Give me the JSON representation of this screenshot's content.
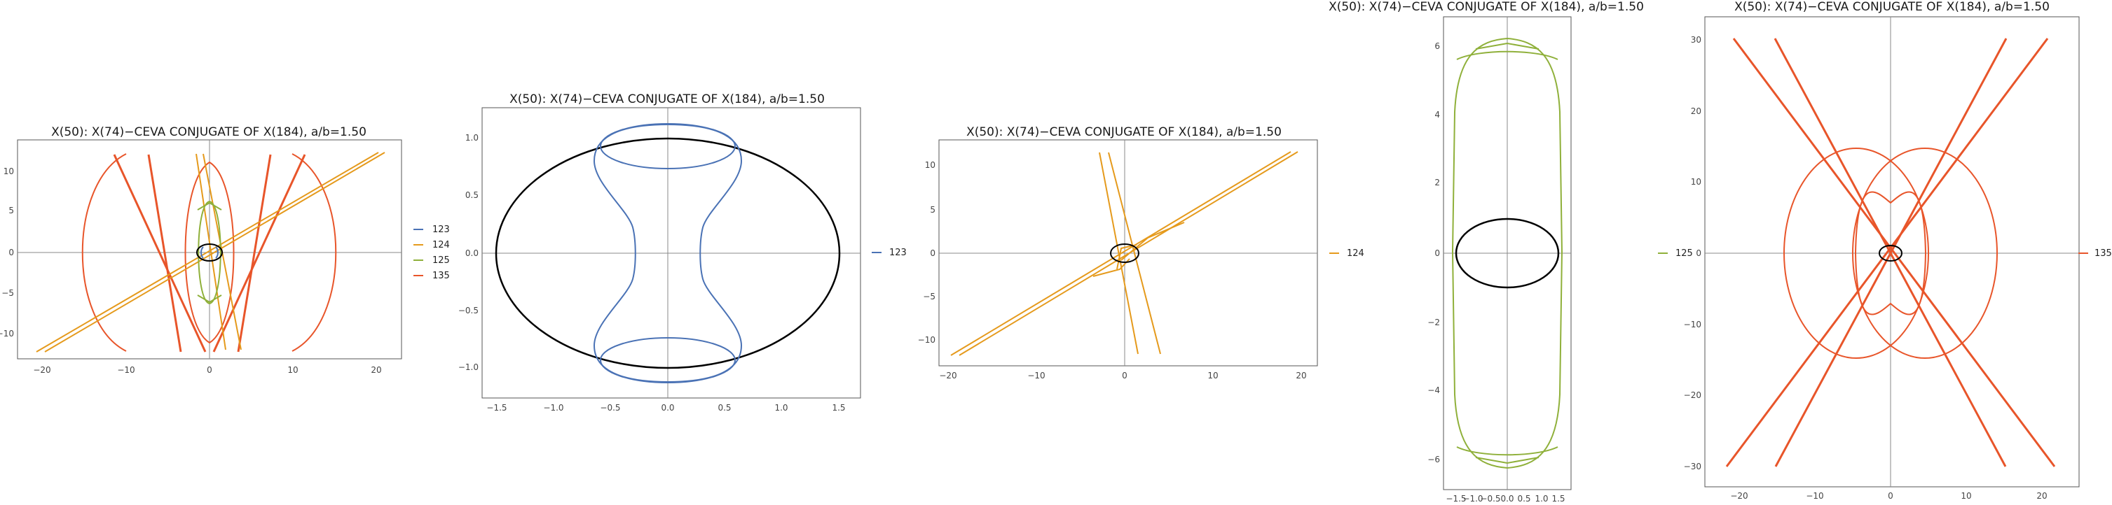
{
  "chart_data": [
    {
      "type": "line",
      "title": "X(50): X(74)−CEVA CONJUGATE OF X(184), a/b=1.50",
      "xticks": [
        "−20",
        "−10",
        "0",
        "10",
        "20"
      ],
      "yticks": [
        "10",
        "5",
        "0",
        "−5",
        "−10"
      ],
      "xlim": [
        -22,
        23
      ],
      "ylim": [
        -13.5,
        13.5
      ],
      "series": [
        {
          "name": "123",
          "color": "#4a72b5"
        },
        {
          "name": "124",
          "color": "#e59a1c"
        },
        {
          "name": "125",
          "color": "#8fb03a"
        },
        {
          "name": "135",
          "color": "#e8552a"
        }
      ]
    },
    {
      "type": "line",
      "title": "X(50): X(74)−CEVA CONJUGATE OF X(184), a/b=1.50",
      "xticks": [
        "−1.5",
        "−1.0",
        "−0.5",
        "0.0",
        "0.5",
        "1.0",
        "1.5"
      ],
      "yticks": [
        "1.0",
        "0.5",
        "0.0",
        "−0.5",
        "−1.0"
      ],
      "xlim": [
        -1.65,
        1.68
      ],
      "ylim": [
        -1.3,
        1.25
      ],
      "series": [
        {
          "name": "123",
          "color": "#4a72b5"
        }
      ]
    },
    {
      "type": "line",
      "title": "X(50): X(74)−CEVA CONJUGATE OF X(184), a/b=1.50",
      "xticks": [
        "−20",
        "−10",
        "0",
        "10",
        "20"
      ],
      "yticks": [
        "10",
        "5",
        "0",
        "−5",
        "−10"
      ],
      "xlim": [
        -21,
        22
      ],
      "ylim": [
        -13,
        13
      ],
      "series": [
        {
          "name": "124",
          "color": "#e59a1c"
        }
      ]
    },
    {
      "type": "line",
      "title": "X(50): X(74)−CEVA CONJUGATE OF X(184), a/b=1.50",
      "xticks": [
        "−1.5",
        "−1.0",
        "−0.5",
        "0.0",
        "0.5",
        "1.0",
        "1.5"
      ],
      "yticks": [
        "6",
        "4",
        "2",
        "0",
        "−2",
        "−4",
        "−6"
      ],
      "xlim": [
        -1.85,
        1.9
      ],
      "ylim": [
        -6.95,
        6.95
      ],
      "series": [
        {
          "name": "125",
          "color": "#8fb03a"
        }
      ]
    },
    {
      "type": "line",
      "title": "X(50): X(74)−CEVA CONJUGATE OF X(184), a/b=1.50",
      "xticks": [
        "−20",
        "−10",
        "0",
        "10",
        "20"
      ],
      "yticks": [
        "30",
        "20",
        "10",
        "0",
        "−10",
        "−20",
        "−30"
      ],
      "xlim": [
        -24,
        24
      ],
      "ylim": [
        -33,
        33
      ],
      "series": [
        {
          "name": "135",
          "color": "#e8552a"
        }
      ]
    }
  ]
}
